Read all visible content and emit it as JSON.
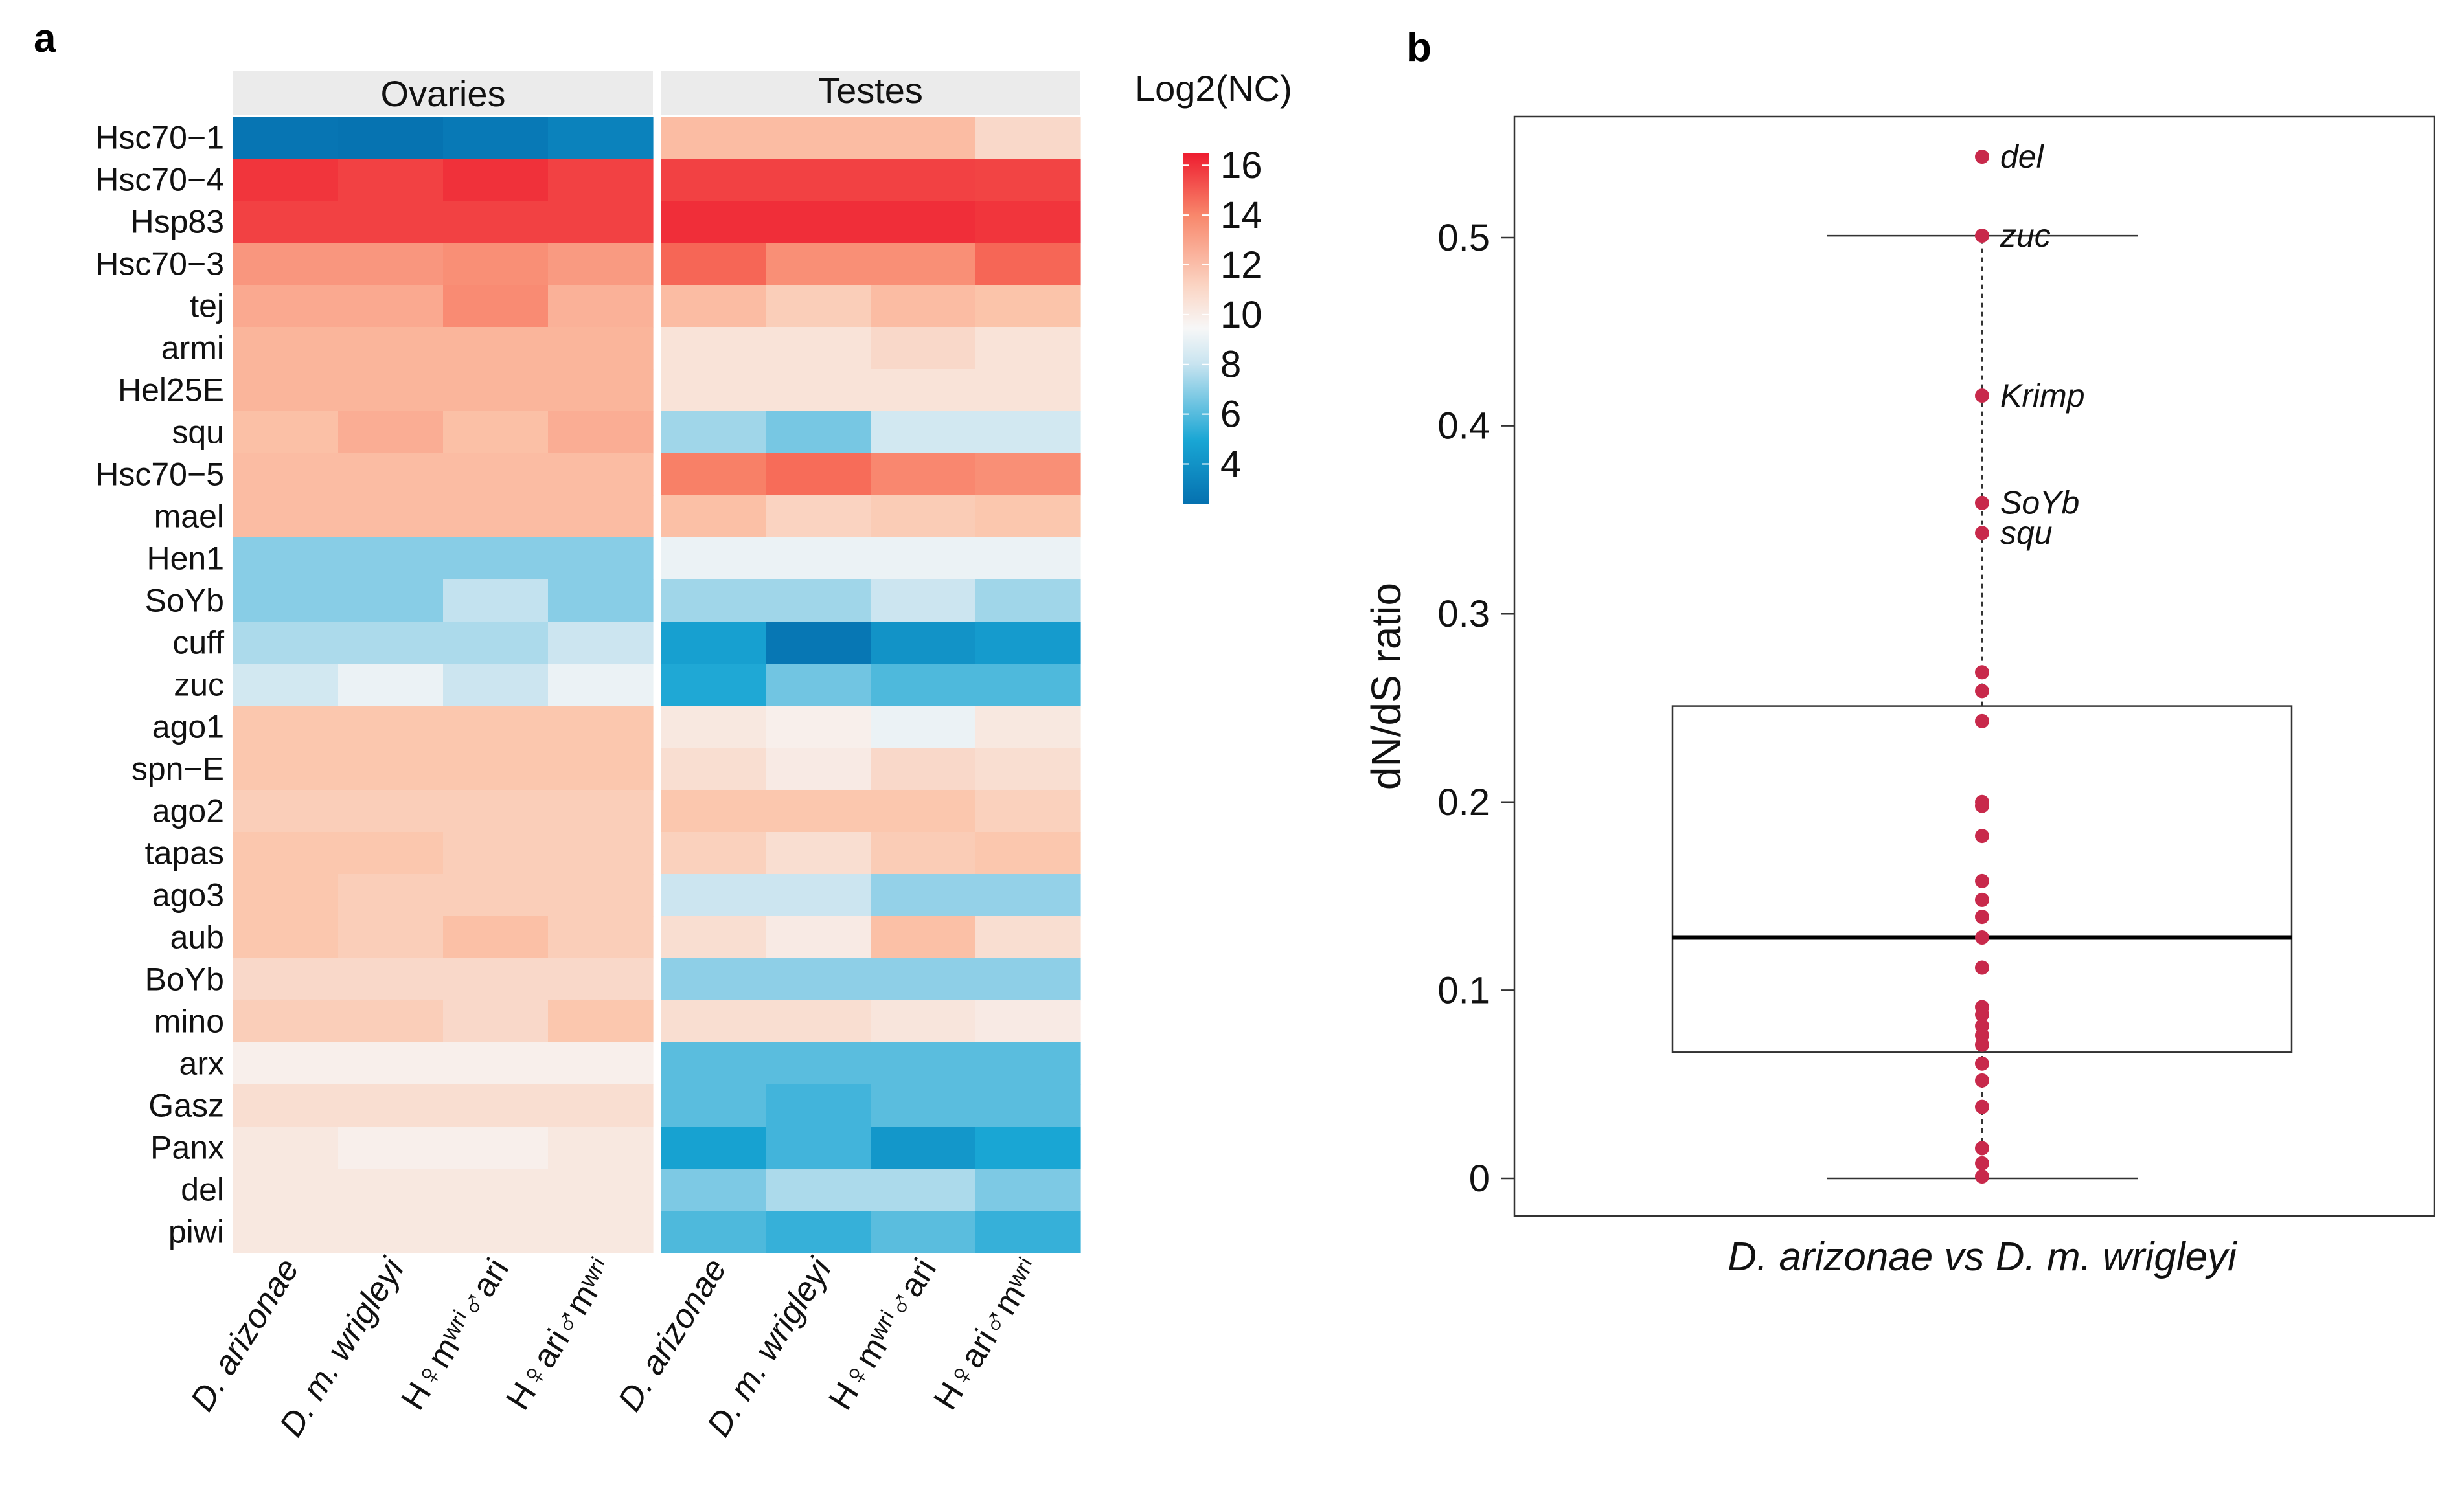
{
  "figure": {
    "panel_a_label": "a",
    "panel_b_label": "b"
  },
  "chart_data": [
    {
      "type": "heatmap",
      "title": "",
      "legend_title": "Log2(NC)",
      "legend_ticks": [
        16,
        14,
        12,
        10,
        8,
        6,
        4
      ],
      "color_range": [
        3,
        17
      ],
      "facets": [
        "Ovaries",
        "Testes"
      ],
      "columns": [
        {
          "facet": "Ovaries",
          "label": "D. arizonae"
        },
        {
          "facet": "Ovaries",
          "label": "D. m. wrigleyi"
        },
        {
          "facet": "Ovaries",
          "label": "H♀mʷʳⁱ♂ari"
        },
        {
          "facet": "Ovaries",
          "label": "H♀ari♂mʷʳⁱ"
        },
        {
          "facet": "Testes",
          "label": "D. arizonae"
        },
        {
          "facet": "Testes",
          "label": "D. m. wrigleyi"
        },
        {
          "facet": "Testes",
          "label": "H♀mʷʳⁱ♂ari"
        },
        {
          "facet": "Testes",
          "label": "H♀ari♂mʷʳⁱ"
        }
      ],
      "rows": [
        "Hsc70−1",
        "Hsc70−4",
        "Hsp83",
        "Hsc70−3",
        "tej",
        "armi",
        "Hel25E",
        "squ",
        "Hsc70−5",
        "mael",
        "Hen1",
        "SoYb",
        "cuff",
        "zuc",
        "ago1",
        "spn−E",
        "ago2",
        "tapas",
        "ago3",
        "aub",
        "BoYb",
        "mino",
        "arx",
        "Gasz",
        "Panx",
        "del",
        "piwi"
      ],
      "values": [
        [
          3.2,
          3.1,
          3.4,
          3.8,
          12.2,
          12.2,
          12.2,
          11.2
        ],
        [
          16.2,
          15.8,
          16.3,
          15.8,
          15.8,
          15.8,
          15.8,
          15.7
        ],
        [
          15.8,
          15.8,
          15.8,
          15.8,
          16.4,
          16.4,
          16.4,
          16.2
        ],
        [
          13.2,
          13.2,
          13.4,
          13.1,
          14.6,
          13.4,
          13.4,
          14.6
        ],
        [
          12.7,
          12.7,
          13.5,
          12.5,
          12.2,
          11.6,
          12.2,
          12.0
        ],
        [
          12.4,
          12.4,
          12.4,
          12.4,
          10.8,
          10.8,
          11.2,
          10.8
        ],
        [
          12.4,
          12.4,
          12.4,
          12.4,
          10.8,
          10.8,
          10.8,
          10.8
        ],
        [
          12.1,
          12.6,
          12.1,
          12.6,
          7.8,
          7.1,
          8.8,
          8.8
        ],
        [
          12.2,
          12.2,
          12.2,
          12.2,
          13.8,
          14.4,
          13.6,
          13.4
        ],
        [
          12.2,
          12.2,
          12.2,
          12.2,
          12.1,
          11.4,
          11.7,
          11.9
        ],
        [
          7.4,
          7.4,
          7.4,
          7.4,
          9.6,
          9.6,
          9.6,
          9.6
        ],
        [
          7.4,
          7.4,
          8.4,
          7.4,
          7.8,
          7.8,
          8.6,
          7.8
        ],
        [
          8.0,
          8.0,
          8.0,
          8.6,
          5.2,
          3.3,
          4.6,
          5.0
        ],
        [
          8.8,
          9.6,
          8.6,
          9.6,
          5.6,
          7.0,
          6.4,
          6.4
        ],
        [
          11.9,
          11.9,
          11.9,
          11.9,
          10.6,
          10.3,
          9.6,
          10.6
        ],
        [
          11.9,
          11.9,
          11.9,
          11.9,
          11.0,
          10.5,
          11.2,
          11.0
        ],
        [
          11.6,
          11.6,
          11.6,
          11.6,
          11.9,
          11.9,
          11.9,
          11.5
        ],
        [
          11.9,
          11.9,
          11.6,
          11.6,
          11.5,
          11.0,
          11.7,
          11.9
        ],
        [
          11.9,
          11.6,
          11.6,
          11.6,
          8.6,
          8.6,
          7.6,
          7.6
        ],
        [
          11.9,
          11.6,
          12.1,
          11.6,
          11.0,
          10.5,
          12.1,
          11.0
        ],
        [
          11.2,
          11.2,
          11.2,
          11.2,
          7.5,
          7.5,
          7.5,
          7.5
        ],
        [
          11.6,
          11.6,
          11.2,
          11.9,
          11.0,
          11.0,
          10.7,
          10.5
        ],
        [
          10.3,
          10.3,
          10.3,
          10.3,
          6.6,
          6.6,
          6.6,
          6.6
        ],
        [
          11.0,
          11.0,
          11.0,
          11.0,
          6.6,
          6.2,
          6.6,
          6.6
        ],
        [
          10.6,
          10.3,
          10.3,
          10.6,
          5.3,
          6.2,
          4.8,
          5.5
        ],
        [
          10.6,
          10.6,
          10.6,
          10.6,
          7.2,
          8.0,
          8.0,
          7.2
        ],
        [
          10.6,
          10.6,
          10.6,
          10.6,
          6.4,
          6.0,
          6.6,
          6.0
        ]
      ]
    },
    {
      "type": "box",
      "title": "",
      "xlabel": "D. arizonae vs D. m. wrigleyi",
      "ylabel": "dN/dS ratio",
      "ylim": [
        -0.02,
        0.57
      ],
      "yticks": [
        0,
        0.1,
        0.2,
        0.3,
        0.4,
        0.5
      ],
      "ytick_labels": [
        "0",
        "0.1",
        "0.2",
        "0.3",
        "0.4",
        "0.5"
      ],
      "box": {
        "min": 0.0,
        "q1": 0.067,
        "median": 0.128,
        "q3": 0.251,
        "whisker_high": 0.501
      },
      "point_color": "#C8294B",
      "points": [
        0.543,
        0.501,
        0.416,
        0.359,
        0.343,
        0.269,
        0.259,
        0.243,
        0.2,
        0.198,
        0.182,
        0.158,
        0.148,
        0.139,
        0.128,
        0.112,
        0.091,
        0.087,
        0.081,
        0.076,
        0.071,
        0.061,
        0.052,
        0.038,
        0.016,
        0.008,
        0.001
      ],
      "labeled_points": [
        {
          "label": "del",
          "value": 0.543
        },
        {
          "label": "zuc",
          "value": 0.501
        },
        {
          "label": "Krimp",
          "value": 0.416
        },
        {
          "label": "SoYb",
          "value": 0.359
        },
        {
          "label": "squ",
          "value": 0.343
        }
      ]
    }
  ]
}
